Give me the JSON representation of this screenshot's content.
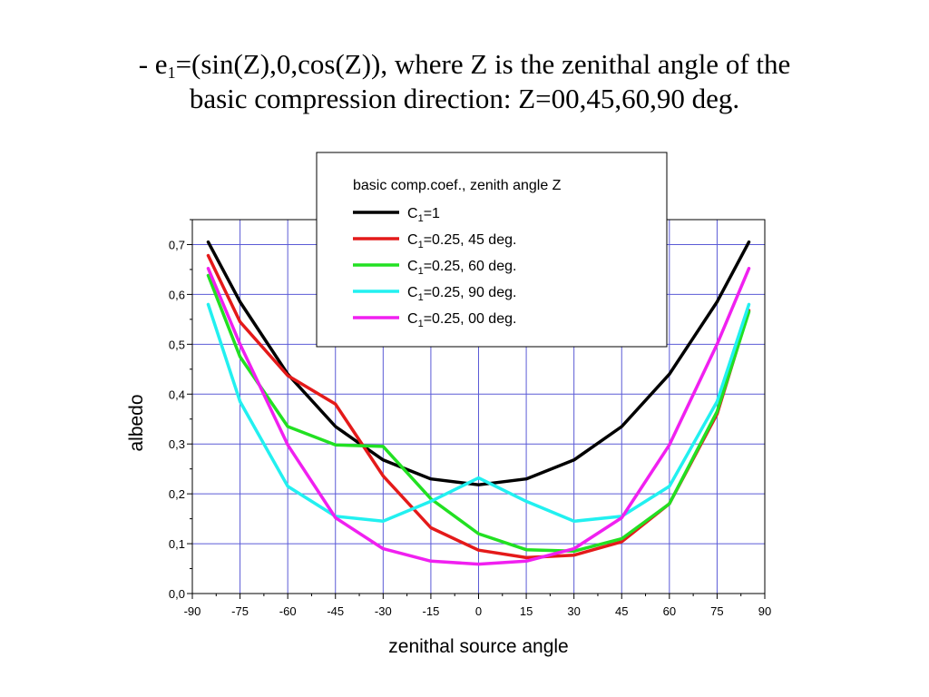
{
  "title": {
    "prefix": "- e",
    "sub": "1",
    "rest": "=(sin(Z),0,cos(Z)), where Z is the zenithal angle of the",
    "line2": "basic compression direction: Z=00,45,60,90 deg."
  },
  "chart_data": {
    "type": "line",
    "xlabel": "zenithal source angle",
    "ylabel": "albedo",
    "xlim": [
      -90,
      90
    ],
    "ylim": [
      0,
      0.75
    ],
    "xticks": [
      "-90",
      "-75",
      "-60",
      "-45",
      "-30",
      "-15",
      "0",
      "15",
      "30",
      "45",
      "60",
      "75",
      "90"
    ],
    "yticks": [
      "0,0",
      "0,1",
      "0,2",
      "0,3",
      "0,4",
      "0,5",
      "0,6",
      "0,7"
    ],
    "grid": true,
    "legend": {
      "title": "basic comp.coef., zenith angle Z",
      "position": "top-center"
    },
    "x": [
      -85,
      -75,
      -60,
      -45,
      -30,
      -15,
      0,
      15,
      30,
      45,
      60,
      75,
      85
    ],
    "series": [
      {
        "name": "C1=1",
        "name_parts": [
          "C",
          "1",
          "=1"
        ],
        "color": "#000000",
        "values": [
          0.705,
          0.585,
          0.44,
          0.335,
          0.268,
          0.23,
          0.218,
          0.23,
          0.268,
          0.335,
          0.44,
          0.585,
          0.705
        ]
      },
      {
        "name": "C1=0.25, 45 deg.",
        "name_parts": [
          "C",
          "1",
          "=0.25, 45 deg."
        ],
        "color": "#e41a1a",
        "values": [
          0.678,
          0.545,
          0.437,
          0.38,
          0.236,
          0.132,
          0.087,
          0.072,
          0.077,
          0.104,
          0.18,
          0.36,
          0.568
        ]
      },
      {
        "name": "C1=0.25, 60 deg.",
        "name_parts": [
          "C",
          "1",
          "=0.25, 60 deg."
        ],
        "color": "#22e022",
        "values": [
          0.638,
          0.475,
          0.335,
          0.298,
          0.295,
          0.19,
          0.12,
          0.088,
          0.085,
          0.11,
          0.18,
          0.365,
          0.565
        ]
      },
      {
        "name": "C1=0.25, 90 deg.",
        "name_parts": [
          "C",
          "1",
          "=0.25, 90 deg."
        ],
        "color": "#22f0f0",
        "values": [
          0.58,
          0.385,
          0.215,
          0.155,
          0.145,
          0.185,
          0.232,
          0.185,
          0.145,
          0.155,
          0.215,
          0.385,
          0.58
        ]
      },
      {
        "name": "C1=0.25, 00 deg.",
        "name_parts": [
          "C",
          "1",
          "=0.25, 00 deg."
        ],
        "color": "#f020f0",
        "values": [
          0.652,
          0.5,
          0.298,
          0.152,
          0.09,
          0.065,
          0.059,
          0.065,
          0.09,
          0.152,
          0.298,
          0.5,
          0.652
        ]
      }
    ]
  }
}
